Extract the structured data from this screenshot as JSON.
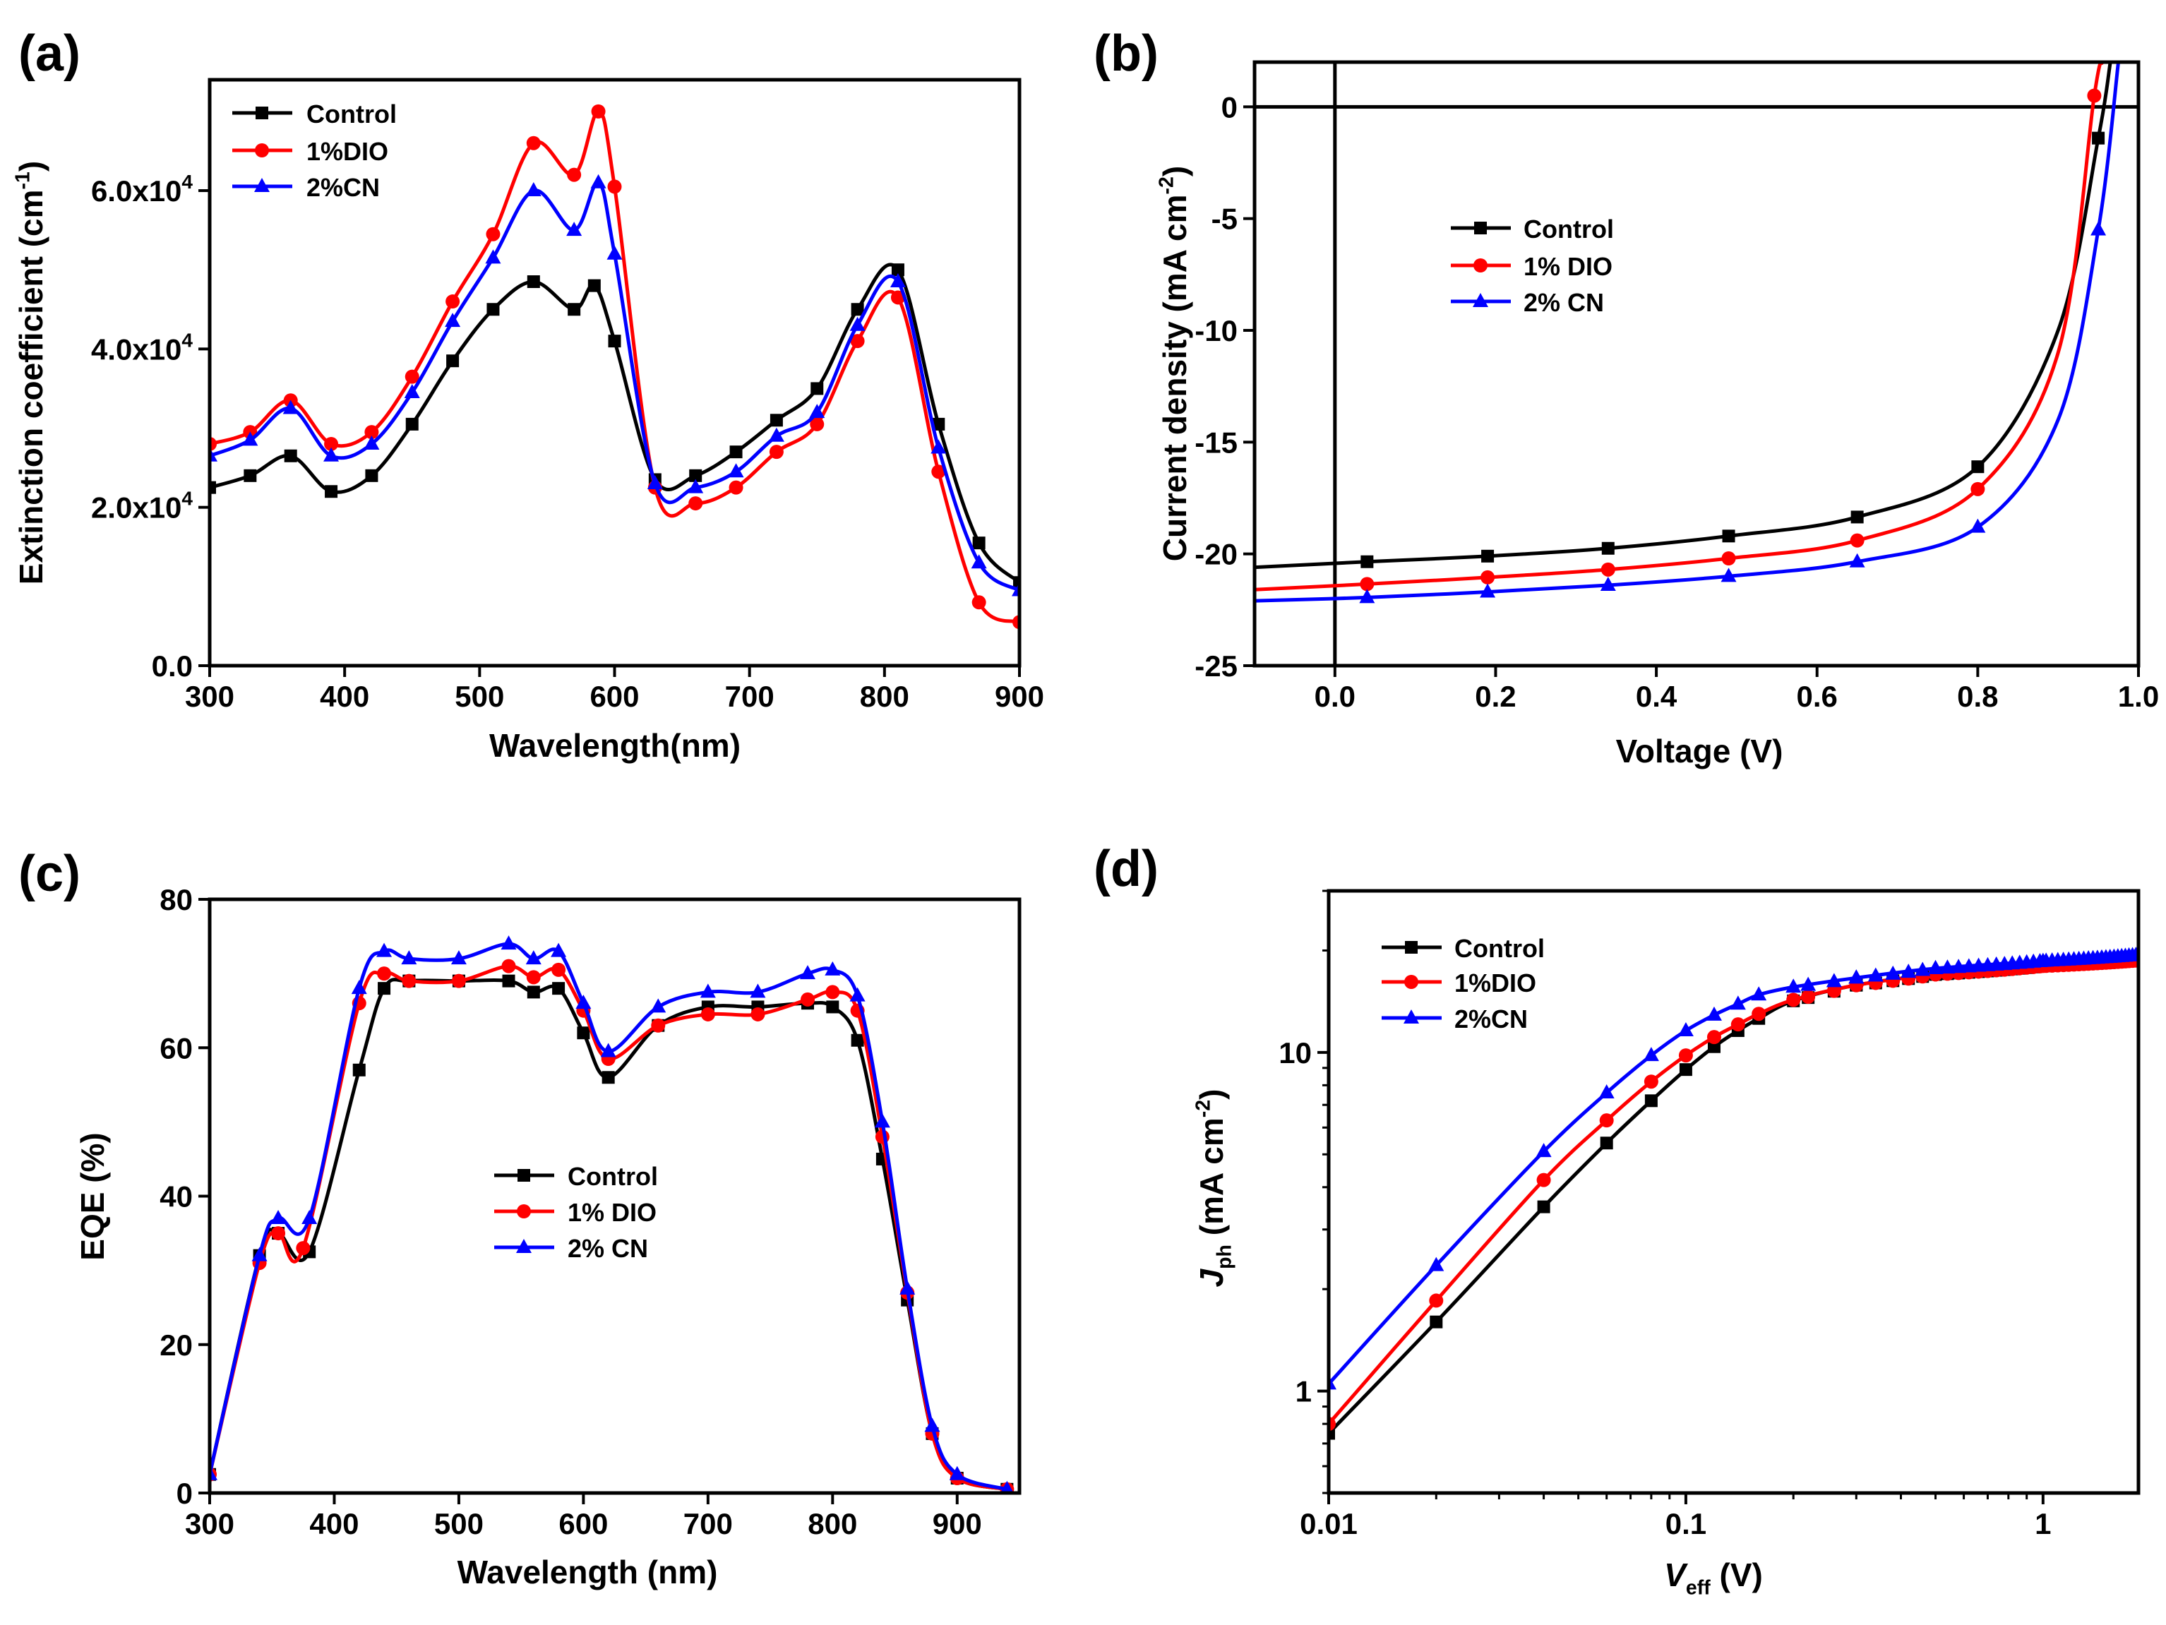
{
  "colors": {
    "Control": "#000000",
    "1%DIO": "#ff0000",
    "2%CN": "#0000ff"
  },
  "chart_data": [
    {
      "panel": "(a)",
      "type": "line",
      "xlabel": [
        {
          "t": "Wavelength(nm)"
        }
      ],
      "ylabel": [
        {
          "t": "Extinction coefficient (cm"
        },
        {
          "t": "-1",
          "sup": true
        },
        {
          "t": ")"
        }
      ],
      "xlim": [
        300,
        900
      ],
      "ylim": [
        0,
        74000
      ],
      "xscale": "linear",
      "yscale": "linear",
      "legend": "top-left",
      "xticks": [
        {
          "v": 300,
          "l": "300"
        },
        {
          "v": 400,
          "l": "400"
        },
        {
          "v": 500,
          "l": "500"
        },
        {
          "v": 600,
          "l": "600"
        },
        {
          "v": 700,
          "l": "700"
        },
        {
          "v": 800,
          "l": "800"
        },
        {
          "v": 900,
          "l": "900"
        }
      ],
      "yticks": [
        {
          "v": 0,
          "l": "0.0"
        },
        {
          "v": 20000,
          "l": "2.0x10",
          "e": "4"
        },
        {
          "v": 40000,
          "l": "4.0x10",
          "e": "4"
        },
        {
          "v": 60000,
          "l": "6.0x10",
          "e": "4"
        }
      ],
      "series": [
        {
          "name": "Control",
          "marker": "square",
          "x": [
            300,
            330,
            360,
            390,
            420,
            450,
            480,
            510,
            540,
            570,
            585,
            600,
            630,
            660,
            690,
            720,
            750,
            780,
            810,
            840,
            870,
            900
          ],
          "y": [
            22500,
            24000,
            26500,
            22000,
            24000,
            30500,
            38500,
            45000,
            48500,
            45000,
            48000,
            41000,
            23500,
            24000,
            27000,
            31000,
            35000,
            45000,
            50000,
            30500,
            15500,
            10500
          ]
        },
        {
          "name": "1%DIO",
          "marker": "circle",
          "x": [
            300,
            330,
            360,
            390,
            420,
            450,
            480,
            510,
            540,
            570,
            588,
            600,
            630,
            660,
            690,
            720,
            750,
            780,
            810,
            840,
            870,
            900
          ],
          "y": [
            28000,
            29500,
            33500,
            28000,
            29500,
            36500,
            46000,
            54500,
            66000,
            62000,
            70000,
            60500,
            22500,
            20500,
            22500,
            27000,
            30500,
            41000,
            46500,
            24500,
            8000,
            5500
          ]
        },
        {
          "name": "2%CN",
          "marker": "triangle",
          "x": [
            300,
            330,
            360,
            390,
            420,
            450,
            480,
            510,
            540,
            570,
            588,
            600,
            630,
            660,
            690,
            720,
            750,
            780,
            810,
            840,
            870,
            900
          ],
          "y": [
            26500,
            28500,
            32500,
            26500,
            28000,
            34500,
            43500,
            51500,
            60000,
            55000,
            61000,
            52000,
            23000,
            22500,
            24500,
            29000,
            32000,
            43000,
            48500,
            27500,
            13000,
            9500
          ]
        }
      ]
    },
    {
      "panel": "(b)",
      "type": "line",
      "xlabel": [
        {
          "t": "Voltage (V)"
        }
      ],
      "ylabel": [
        {
          "t": "Current density (mA cm"
        },
        {
          "t": "-2",
          "sup": true
        },
        {
          "t": ")"
        }
      ],
      "xlim": [
        -0.1,
        1.0
      ],
      "ylim": [
        -25,
        2
      ],
      "xscale": "linear",
      "yscale": "linear",
      "legend": "center-left",
      "xticks": [
        {
          "v": 0,
          "l": "0.0"
        },
        {
          "v": 0.2,
          "l": "0.2"
        },
        {
          "v": 0.4,
          "l": "0.4"
        },
        {
          "v": 0.6,
          "l": "0.6"
        },
        {
          "v": 0.8,
          "l": "0.8"
        },
        {
          "v": 1.0,
          "l": "1.0"
        }
      ],
      "yticks": [
        {
          "v": -25,
          "l": "-25"
        },
        {
          "v": -20,
          "l": "-20"
        },
        {
          "v": -15,
          "l": "-15"
        },
        {
          "v": -10,
          "l": "-10"
        },
        {
          "v": -5,
          "l": "-5"
        },
        {
          "v": 0,
          "l": "0"
        }
      ],
      "series": [
        {
          "name": "Control",
          "marker": "square",
          "x": [
            -0.1,
            0.04,
            0.19,
            0.34,
            0.49,
            0.65,
            0.8,
            0.9,
            0.95,
            0.965
          ],
          "y": [
            -20.6,
            -20.35,
            -20.1,
            -19.75,
            -19.2,
            -18.35,
            -16.1,
            -10,
            -1.4,
            2
          ],
          "marked": [
            1,
            2,
            3,
            4,
            5,
            6,
            8
          ]
        },
        {
          "name": "1% DIO",
          "marker": "circle",
          "x": [
            -0.1,
            0.04,
            0.19,
            0.34,
            0.49,
            0.65,
            0.8,
            0.9,
            0.945,
            0.955
          ],
          "y": [
            -21.6,
            -21.35,
            -21.05,
            -20.7,
            -20.2,
            -19.4,
            -17.1,
            -11,
            0.5,
            2
          ],
          "marked": [
            1,
            2,
            3,
            4,
            5,
            6,
            8
          ]
        },
        {
          "name": "2% CN",
          "marker": "triangle",
          "x": [
            -0.1,
            0.04,
            0.19,
            0.34,
            0.49,
            0.65,
            0.8,
            0.9,
            0.95,
            0.975
          ],
          "y": [
            -22.1,
            -21.95,
            -21.7,
            -21.4,
            -21.0,
            -20.35,
            -18.8,
            -14,
            -5.5,
            2
          ],
          "marked": [
            1,
            2,
            3,
            4,
            5,
            6,
            8
          ]
        }
      ]
    },
    {
      "panel": "(c)",
      "type": "line",
      "xlabel": [
        {
          "t": "Wavelength (nm)"
        }
      ],
      "ylabel": [
        {
          "t": "EQE (%)"
        }
      ],
      "xlim": [
        300,
        950
      ],
      "ylim": [
        0,
        80
      ],
      "xscale": "linear",
      "yscale": "linear",
      "legend": "center",
      "xticks": [
        {
          "v": 300,
          "l": "300"
        },
        {
          "v": 400,
          "l": "400"
        },
        {
          "v": 500,
          "l": "500"
        },
        {
          "v": 600,
          "l": "600"
        },
        {
          "v": 700,
          "l": "700"
        },
        {
          "v": 800,
          "l": "800"
        },
        {
          "v": 900,
          "l": "900"
        }
      ],
      "yticks": [
        {
          "v": 0,
          "l": "0"
        },
        {
          "v": 20,
          "l": "20"
        },
        {
          "v": 40,
          "l": "40"
        },
        {
          "v": 60,
          "l": "60"
        },
        {
          "v": 80,
          "l": "80"
        }
      ],
      "series": [
        {
          "name": "Control",
          "marker": "square",
          "x": [
            300,
            340,
            355,
            380,
            420,
            440,
            460,
            500,
            540,
            560,
            580,
            600,
            620,
            660,
            700,
            740,
            780,
            800,
            820,
            840,
            860,
            880,
            900,
            940
          ],
          "y": [
            2.5,
            32,
            35,
            32.5,
            57,
            68,
            69,
            69,
            69,
            67.5,
            68,
            62,
            56,
            63,
            65.5,
            65.5,
            66,
            65.5,
            61,
            45,
            26,
            8,
            2,
            0.5
          ]
        },
        {
          "name": "1% DIO",
          "marker": "circle",
          "x": [
            300,
            340,
            355,
            375,
            420,
            440,
            460,
            500,
            540,
            560,
            580,
            600,
            620,
            660,
            700,
            740,
            780,
            800,
            820,
            840,
            860,
            880,
            900,
            940
          ],
          "y": [
            2.5,
            31,
            35,
            33,
            66,
            70,
            69,
            69,
            71,
            69.5,
            70.5,
            65,
            58.5,
            63,
            64.5,
            64.5,
            66.5,
            67.5,
            65,
            48,
            27,
            8,
            2,
            0.5
          ]
        },
        {
          "name": "2% CN",
          "marker": "triangle",
          "x": [
            300,
            340,
            355,
            380,
            420,
            440,
            460,
            500,
            540,
            560,
            580,
            600,
            620,
            660,
            700,
            740,
            780,
            800,
            820,
            840,
            860,
            880,
            900,
            940
          ],
          "y": [
            2.5,
            32,
            37,
            37,
            68,
            73,
            72,
            72,
            74,
            72,
            73,
            66,
            59.5,
            65.5,
            67.5,
            67.5,
            70,
            70.5,
            67,
            50,
            27.5,
            9,
            2.5,
            0.5
          ]
        }
      ]
    },
    {
      "panel": "(d)",
      "type": "line",
      "xlabel": [
        {
          "t": "V",
          "it": true
        },
        {
          "t": "eff",
          "sub": true
        },
        {
          "t": " (V)"
        }
      ],
      "ylabel": [
        {
          "t": "J",
          "it": true
        },
        {
          "t": "ph",
          "sub": true
        },
        {
          "t": " (mA cm"
        },
        {
          "t": "-2",
          "sup": true
        },
        {
          "t": ")"
        }
      ],
      "xlim": [
        0.01,
        1.85
      ],
      "ylim": [
        0.5,
        30
      ],
      "xscale": "log",
      "yscale": "log",
      "legend": "top-left",
      "xticks": [
        {
          "v": 0.01,
          "l": "0.01"
        },
        {
          "v": 0.1,
          "l": "0.1"
        },
        {
          "v": 1,
          "l": "1"
        }
      ],
      "yticks": [
        {
          "v": 1,
          "l": "1"
        },
        {
          "v": 10,
          "l": "10"
        }
      ],
      "series": [
        {
          "name": "Control",
          "marker": "square",
          "x": [
            0.01,
            0.02,
            0.04,
            0.06,
            0.08,
            0.1,
            0.12,
            0.14,
            0.16,
            0.2,
            0.3,
            0.5,
            1,
            1.85
          ],
          "y": [
            0.75,
            1.6,
            3.5,
            5.4,
            7.2,
            8.9,
            10.4,
            11.6,
            12.6,
            14.2,
            15.8,
            17,
            18,
            18.7
          ]
        },
        {
          "name": "1%DIO",
          "marker": "circle",
          "x": [
            0.01,
            0.02,
            0.04,
            0.06,
            0.08,
            0.1,
            0.12,
            0.14,
            0.16,
            0.2,
            0.3,
            0.5,
            1,
            1.85
          ],
          "y": [
            0.8,
            1.85,
            4.2,
            6.3,
            8.2,
            9.8,
            11.1,
            12.1,
            13,
            14.3,
            15.8,
            17,
            18,
            18.7
          ]
        },
        {
          "name": "2%CN",
          "marker": "triangle",
          "x": [
            0.01,
            0.02,
            0.04,
            0.06,
            0.08,
            0.1,
            0.12,
            0.14,
            0.16,
            0.2,
            0.3,
            0.5,
            1,
            1.85
          ],
          "y": [
            1.05,
            2.35,
            5.1,
            7.6,
            9.8,
            11.6,
            12.9,
            13.9,
            14.8,
            15.6,
            16.6,
            17.7,
            18.6,
            19.4
          ]
        }
      ]
    }
  ]
}
